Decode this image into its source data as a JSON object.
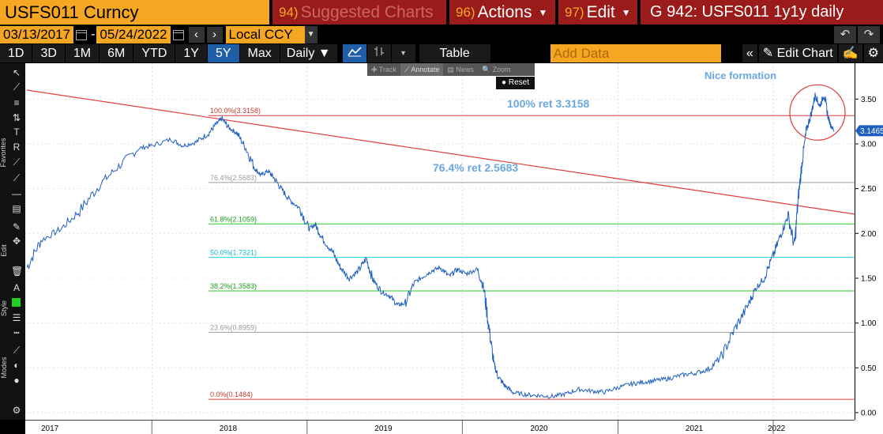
{
  "header": {
    "ticker": "USFS011 Curncy",
    "suggested_num": "94)",
    "suggested_label": "Suggested Charts",
    "actions_num": "96)",
    "actions_label": "Actions",
    "edit_num": "97)",
    "edit_label": "Edit",
    "graph_title": "G 942: USFS011 1y1y daily"
  },
  "dates": {
    "start": "03/13/2017",
    "end": "05/24/2022",
    "currency": "Local CCY"
  },
  "periods": [
    "1D",
    "3D",
    "1M",
    "6M",
    "YTD",
    "1Y",
    "5Y",
    "Max"
  ],
  "active_period": "5Y",
  "frequency": "Daily",
  "table_label": "Table",
  "add_data_placeholder": "Add Data",
  "edit_chart_label": "Edit Chart",
  "mini_toolbar": {
    "track": "Track",
    "annotate": "Annotate",
    "news": "News",
    "zoom": "Zoom",
    "reset": "Reset"
  },
  "left_sections": {
    "favorites": "Favorites",
    "edit": "Edit",
    "style": "Style",
    "modes": "Modes"
  },
  "colors": {
    "series": "#1f5fbf",
    "trend": "#e23b3b",
    "fib_100": "#e23b3b",
    "fib_764": "#9e9e9e",
    "fib_618": "#2ecc2e",
    "fib_500": "#1fd3ee",
    "fib_382": "#2ecc2e",
    "fib_236": "#9e9e9e",
    "fib_0": "#e23b3b",
    "annotation": "#6aa8e0",
    "bb_orange": "#f5a623",
    "bb_red": "#9b1b1b"
  },
  "chart_data": {
    "type": "line",
    "title": "",
    "xlabel": "",
    "ylabel": "",
    "ylim": [
      -0.08,
      3.9
    ],
    "xlim": [
      "2017-03-13",
      "2022-05-24"
    ],
    "y_ticks": [
      "0.00",
      "0.50",
      "1.00",
      "1.50",
      "2.00",
      "2.50",
      "3.00",
      "3.50"
    ],
    "x_ticks": [
      "2017",
      "2018",
      "2019",
      "2020",
      "2021",
      "2022"
    ],
    "last_value": "3.1465",
    "series": [
      {
        "x": [
          "2017-03-13",
          "2017-04-15",
          "2017-06-01",
          "2017-07-15",
          "2017-09-01",
          "2017-10-15",
          "2017-12-01",
          "2018-01-01",
          "2018-02-15",
          "2018-03-15",
          "2018-04-15",
          "2018-05-15",
          "2018-06-01",
          "2018-06-15",
          "2018-07-01",
          "2018-07-20",
          "2018-08-10",
          "2018-09-01",
          "2018-09-15",
          "2018-10-01",
          "2018-10-15",
          "2018-11-01",
          "2018-11-20",
          "2018-12-15",
          "2019-01-05",
          "2019-01-20",
          "2019-02-05",
          "2019-03-01",
          "2019-03-20",
          "2019-04-10",
          "2019-05-01",
          "2019-05-20",
          "2019-06-05",
          "2019-06-25",
          "2019-07-15",
          "2019-08-01",
          "2019-08-20",
          "2019-09-10",
          "2019-10-01",
          "2019-10-20",
          "2019-11-10",
          "2019-12-01",
          "2019-12-20",
          "2020-01-10",
          "2020-02-05",
          "2020-02-20",
          "2020-03-05",
          "2020-03-15",
          "2020-03-25",
          "2020-04-10",
          "2020-05-01",
          "2020-06-01",
          "2020-07-01",
          "2020-08-01",
          "2020-09-01",
          "2020-10-01",
          "2020-11-01",
          "2020-12-01",
          "2021-01-01",
          "2021-02-01",
          "2021-03-01",
          "2021-04-01",
          "2021-05-01",
          "2021-06-01",
          "2021-07-01",
          "2021-08-01",
          "2021-09-01",
          "2021-10-01",
          "2021-11-01",
          "2021-11-20",
          "2021-12-10",
          "2022-01-01",
          "2022-01-20",
          "2022-02-05",
          "2022-02-20",
          "2022-03-01",
          "2022-03-10",
          "2022-03-20",
          "2022-04-01",
          "2022-04-10",
          "2022-04-20",
          "2022-05-01",
          "2022-05-10",
          "2022-05-17",
          "2022-05-24"
        ],
        "values": [
          1.62,
          1.92,
          2.05,
          2.25,
          2.55,
          2.75,
          2.95,
          2.98,
          3.05,
          2.98,
          3.02,
          3.12,
          3.22,
          3.28,
          3.18,
          3.12,
          2.95,
          2.72,
          2.65,
          2.7,
          2.62,
          2.5,
          2.38,
          2.28,
          2.05,
          2.1,
          1.95,
          1.8,
          1.62,
          1.5,
          1.58,
          1.72,
          1.48,
          1.35,
          1.3,
          1.2,
          1.22,
          1.45,
          1.52,
          1.58,
          1.62,
          1.52,
          1.6,
          1.55,
          1.6,
          1.4,
          0.9,
          0.55,
          0.4,
          0.3,
          0.22,
          0.2,
          0.19,
          0.18,
          0.21,
          0.26,
          0.24,
          0.23,
          0.28,
          0.32,
          0.34,
          0.36,
          0.38,
          0.42,
          0.44,
          0.48,
          0.62,
          0.92,
          1.18,
          1.38,
          1.5,
          1.75,
          2.0,
          2.2,
          1.85,
          2.4,
          2.8,
          3.15,
          3.35,
          3.55,
          3.42,
          3.55,
          3.3,
          3.2,
          3.15
        ]
      }
    ],
    "fibonacci": [
      {
        "label": "100.0%(3.3158)",
        "value": 3.3158
      },
      {
        "label": "76.4%(2.5683)",
        "value": 2.5683
      },
      {
        "label": "61.8%(2.1059)",
        "value": 2.1059
      },
      {
        "label": "50.0%(1.7321)",
        "value": 1.7321
      },
      {
        "label": "38.2%(1.3583)",
        "value": 1.3583
      },
      {
        "label": "23.6%(0.8959)",
        "value": 0.8959
      },
      {
        "label": "0.0%(0.1484)",
        "value": 0.1484
      }
    ],
    "trendline": {
      "x": [
        "2017-03-13",
        "2022-05-24"
      ],
      "values": [
        3.6,
        2.25
      ]
    },
    "annotations": [
      {
        "text": "100% ret 3.3158"
      },
      {
        "text": "76.4% ret 2.5683"
      },
      {
        "text": "Nice formation"
      }
    ],
    "highlight_circle": {
      "x": "2022-04-15",
      "y": 3.35
    }
  }
}
